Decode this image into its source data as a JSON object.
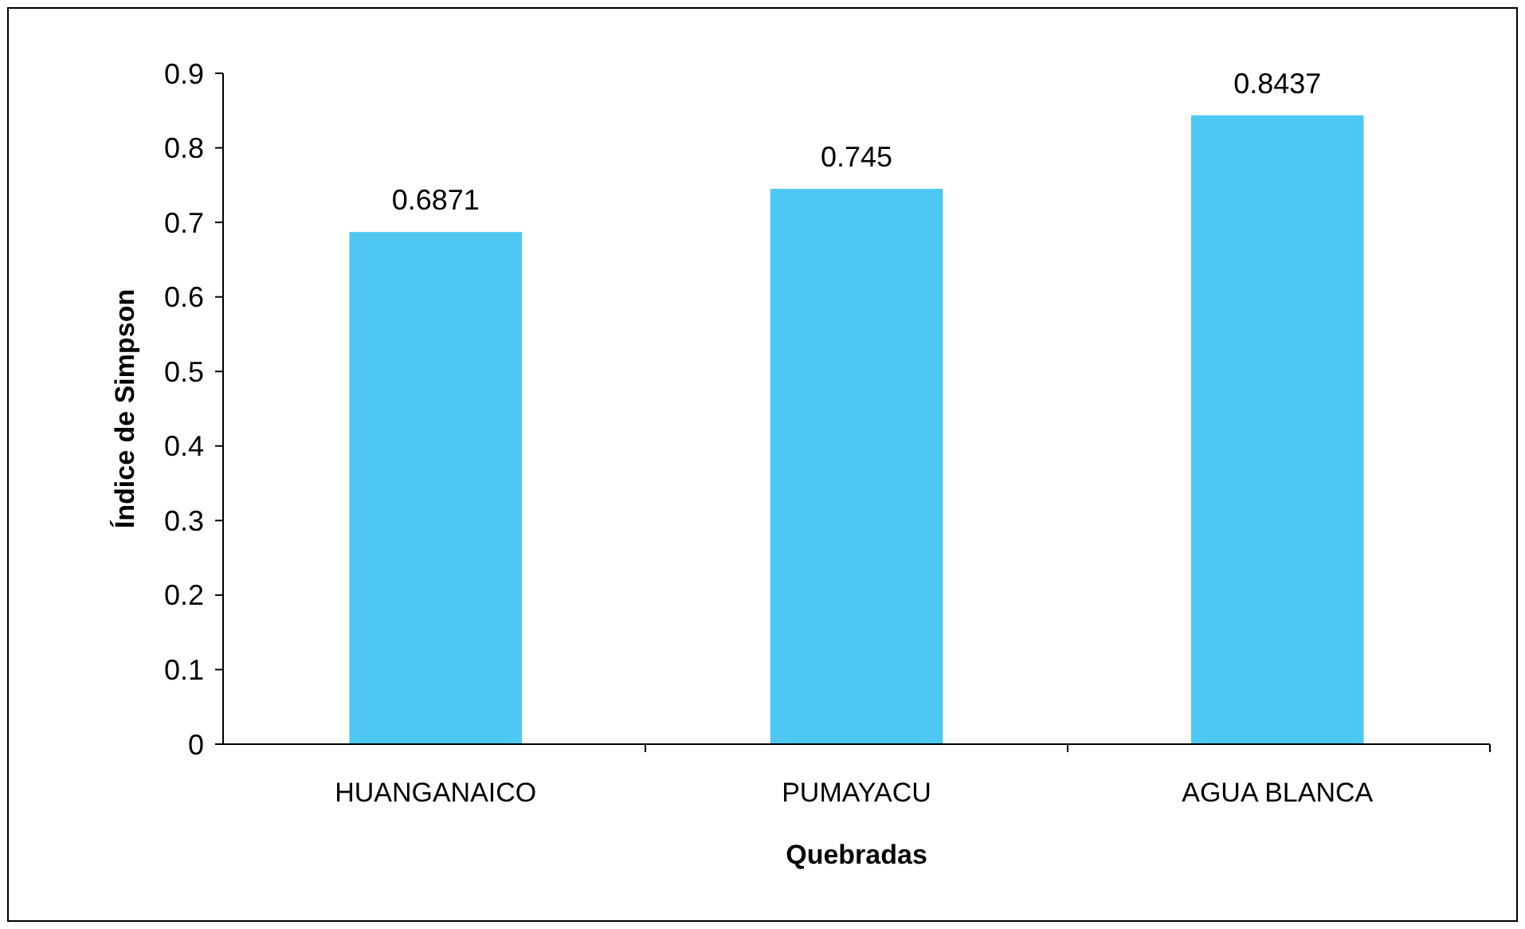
{
  "chart_data": {
    "type": "bar",
    "xlabel": "Quebradas",
    "ylabel": "Índice de Simpson",
    "categories": [
      "HUANGANAICO",
      "PUMAYACU",
      "AGUA BLANCA"
    ],
    "values": [
      0.6871,
      0.745,
      0.8437
    ],
    "color": "#4ec8f2",
    "ylim": [
      0,
      0.9
    ],
    "yticks": [
      {
        "value": 0,
        "label": "0"
      },
      {
        "value": 0.1,
        "label": "0.1"
      },
      {
        "value": 0.2,
        "label": "0.2"
      },
      {
        "value": 0.3,
        "label": "0.3"
      },
      {
        "value": 0.4,
        "label": "0.4"
      },
      {
        "value": 0.5,
        "label": "0.5"
      },
      {
        "value": 0.6,
        "label": "0.6"
      },
      {
        "value": 0.7,
        "label": "0.7"
      },
      {
        "value": 0.8,
        "label": "0.8"
      },
      {
        "value": 0.9,
        "label": "0.9"
      }
    ],
    "data_labels": true,
    "grid": false
  }
}
